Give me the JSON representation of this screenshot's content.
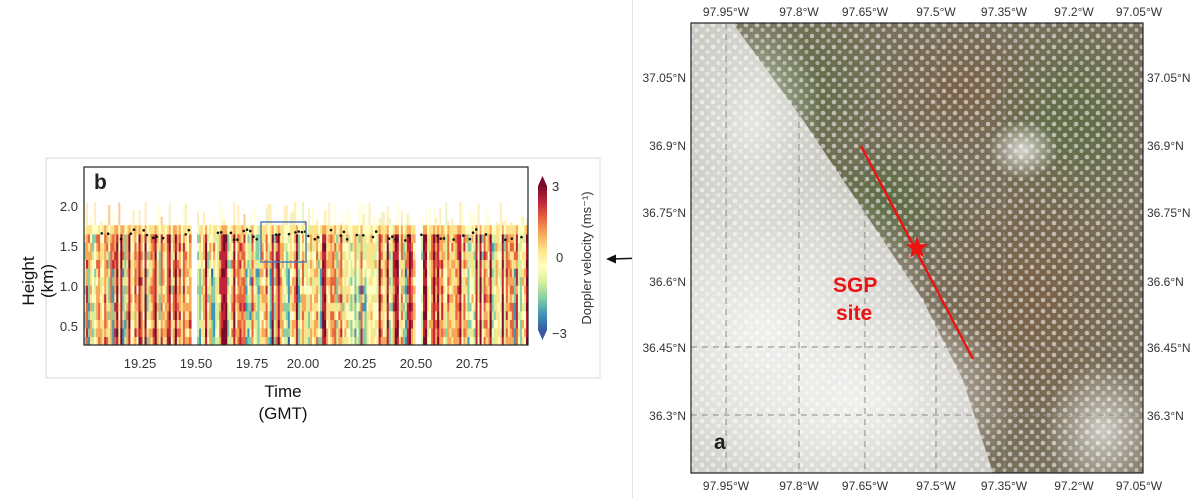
{
  "panel_b": {
    "letter": "b",
    "y_axis_label_line1": "Height",
    "y_axis_label_line2": "(km)",
    "x_axis_label_line1": "Time",
    "x_axis_label_line2": "(GMT)",
    "x_ticks": [
      "19.25",
      "19.50",
      "19.75",
      "20.00",
      "20.25",
      "20.50",
      "20.75"
    ],
    "y_ticks": [
      "0.5",
      "1.0",
      "1.5",
      "2.0"
    ],
    "colorbar": {
      "label": "Doppler velocity (ms⁻¹)",
      "ticks": [
        "3",
        "0",
        "−3"
      ],
      "colors": [
        "#7b0a2b",
        "#c0243b",
        "#e8643f",
        "#f7a85a",
        "#fde38c",
        "#ffffc4",
        "#d8efa0",
        "#86cfa5",
        "#3f97b7",
        "#3c5aa3"
      ]
    },
    "highlight_box_color": "#4a78b5"
  },
  "panel_a": {
    "letter": "a",
    "lon_ticks": [
      "97.95°W",
      "97.8°W",
      "97.65°W",
      "97.5°W",
      "97.35°W",
      "97.2°W",
      "97.05°W"
    ],
    "lat_ticks": [
      "37.05°N",
      "36.9°N",
      "36.75°N",
      "36.6°N",
      "36.45°N",
      "36.3°N"
    ],
    "site_label_line1": "SGP",
    "site_label_line2": "site",
    "site_color": "#ee1111"
  },
  "chart_data": {
    "type": "heatmap",
    "title": "",
    "xlabel": "Time (GMT)",
    "ylabel": "Height (km)",
    "xlim": [
      19.0,
      20.97
    ],
    "ylim": [
      0.22,
      2.45
    ],
    "x_ticks": [
      19.25,
      19.5,
      19.75,
      20.0,
      20.25,
      20.5,
      20.75
    ],
    "y_ticks": [
      0.5,
      1.0,
      1.5,
      2.0
    ],
    "colorbar": {
      "label": "Doppler velocity (ms⁻¹)",
      "range": [
        -3,
        3
      ],
      "ticks": [
        -3,
        0,
        3
      ]
    },
    "data_gaps_time": [
      [
        19.47,
        19.5
      ],
      [
        20.46,
        20.49
      ]
    ],
    "approx_cloud_base_km": 1.6
  }
}
